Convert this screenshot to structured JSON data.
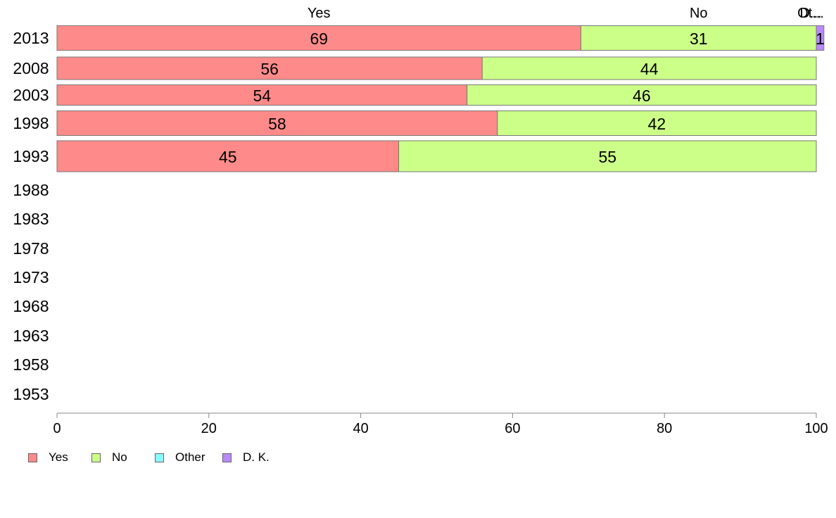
{
  "chart_data": {
    "type": "bar",
    "orientation": "horizontal",
    "stacked": true,
    "categories": [
      "2013",
      "2008",
      "2003",
      "1998",
      "1993",
      "1988",
      "1983",
      "1978",
      "1973",
      "1968",
      "1963",
      "1958",
      "1953"
    ],
    "series": [
      {
        "name": "Yes",
        "color": "#ff8a8a",
        "values": [
          69,
          56,
          54,
          58,
          45,
          null,
          null,
          null,
          null,
          null,
          null,
          null,
          null
        ]
      },
      {
        "name": "No",
        "color": "#ccff88",
        "values": [
          31,
          44,
          46,
          42,
          55,
          null,
          null,
          null,
          null,
          null,
          null,
          null,
          null
        ]
      },
      {
        "name": "Other",
        "color": "#88ffff",
        "values": [
          0,
          0,
          0,
          0,
          0,
          null,
          null,
          null,
          null,
          null,
          null,
          null,
          null
        ]
      },
      {
        "name": "D. K.",
        "color": "#bb88ff",
        "values": [
          1,
          0,
          0,
          0,
          0,
          null,
          null,
          null,
          null,
          null,
          null,
          null,
          null
        ]
      }
    ],
    "top_labels": [
      "Yes",
      "No",
      "Ot...",
      "D..."
    ],
    "xlim": [
      0,
      100
    ],
    "xticks": [
      0,
      20,
      40,
      60,
      80,
      100
    ],
    "grid": false,
    "legend_position": "bottom-left"
  }
}
